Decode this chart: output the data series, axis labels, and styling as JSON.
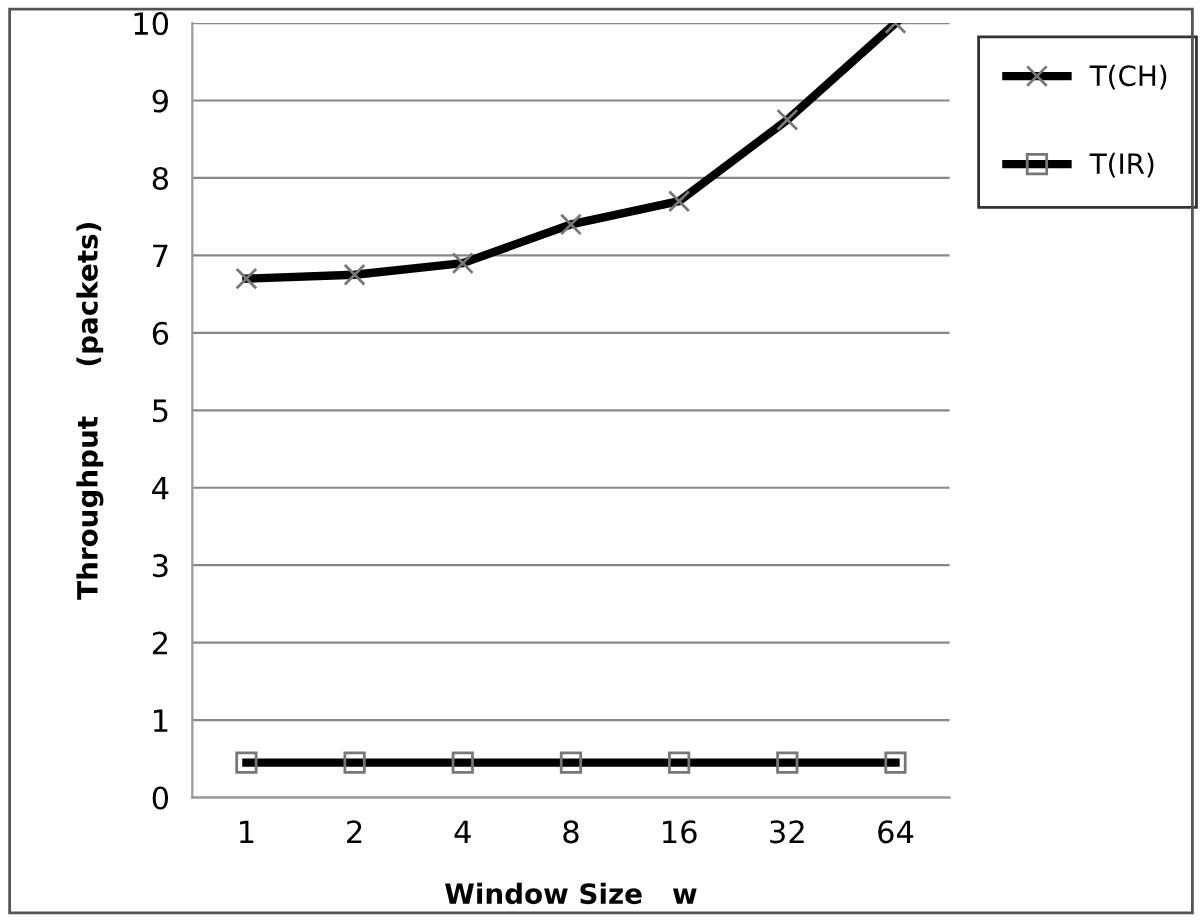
{
  "chart_data": {
    "type": "line",
    "xlabel": "Window Size   w",
    "ylabel": "Throughput     (packets)",
    "categories": [
      "1",
      "2",
      "4",
      "8",
      "16",
      "32",
      "64"
    ],
    "series": [
      {
        "name": "T(CH)",
        "color": "#000000",
        "marker": "cross",
        "values": [
          6.7,
          6.75,
          6.9,
          7.4,
          7.7,
          8.75,
          10
        ]
      },
      {
        "name": "T(IR)",
        "color": "#000000",
        "marker": "square",
        "values": [
          0.45,
          0.45,
          0.45,
          0.45,
          0.45,
          0.45,
          0.45
        ]
      }
    ],
    "ylim": [
      0,
      10
    ],
    "yticks": [
      0,
      1,
      2,
      3,
      4,
      5,
      6,
      7,
      8,
      9,
      10
    ],
    "grid": "y",
    "legend": "right",
    "line_style": "solid"
  }
}
